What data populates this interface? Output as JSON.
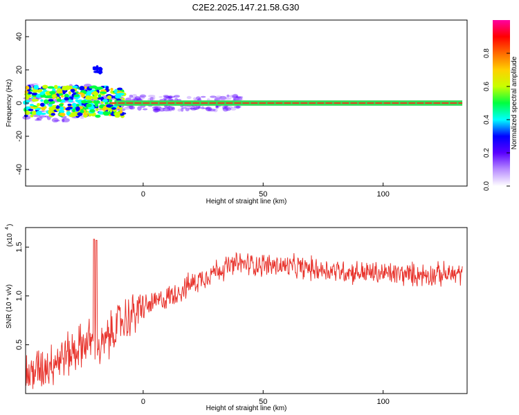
{
  "title": "C2E2.2025.147.21.58.G30",
  "colors": {
    "snr_line": "#e8342d",
    "spectrum_center": "#e04020",
    "axis": "#000000"
  },
  "chart_data": [
    {
      "type": "heatmap",
      "xlabel": "Height of straight line (km)",
      "ylabel": "Frequency (Hz)",
      "xlim": [
        -49,
        135
      ],
      "ylim": [
        -50,
        50
      ],
      "x_ticks": [
        0,
        50,
        100
      ],
      "y_ticks": [
        -40,
        -20,
        0,
        20,
        40
      ],
      "colorbar": {
        "label": "Normalized spectral amplitude",
        "range": [
          0,
          1
        ],
        "ticks": [
          "0.0",
          "0.2",
          "0.4",
          "0.6",
          "0.8"
        ],
        "colormap": [
          "#ffffff",
          "#b88cff",
          "#5a00ff",
          "#0000ff",
          "#00ffff",
          "#00ff40",
          "#c8ff00",
          "#ffd000",
          "#ff6a00",
          "#ff0000",
          "#ff00a0"
        ]
      },
      "features": [
        {
          "description": "dominant line",
          "frequency_hz": 0,
          "x_range_km": [
            -49,
            133
          ],
          "amplitude": 1.0
        },
        {
          "description": "broadband noise",
          "frequency_hz_range": [
            -8,
            10
          ],
          "x_range_km": [
            -49,
            -22
          ],
          "amplitude": 0.5
        },
        {
          "description": "isolated patch",
          "frequency_hz": 20,
          "x_km": -19,
          "amplitude": 0.3
        }
      ]
    },
    {
      "type": "line",
      "xlabel": "Height of straight line (km)",
      "ylabel": "SNR (10 * v/v)",
      "scale_label": "(x10",
      "scale_exponent": "4",
      "xlim": [
        -49,
        135
      ],
      "ylim": [
        0,
        1.7
      ],
      "x_ticks": [
        0,
        50,
        100
      ],
      "y_ticks": [
        "0.5",
        "1.0",
        "1.5"
      ],
      "trend": {
        "x": [
          -49,
          -40,
          -30,
          -22,
          -18,
          -10,
          0,
          10,
          20,
          30,
          40,
          50,
          70,
          90,
          110,
          133
        ],
        "y": [
          0.18,
          0.3,
          0.42,
          0.55,
          0.45,
          0.72,
          0.88,
          0.98,
          1.12,
          1.26,
          1.33,
          1.32,
          1.28,
          1.24,
          1.22,
          1.22
        ]
      },
      "spikes": [
        {
          "x": -20.5,
          "y": 1.58
        },
        {
          "x": -19.5,
          "y": 1.57
        }
      ]
    }
  ]
}
